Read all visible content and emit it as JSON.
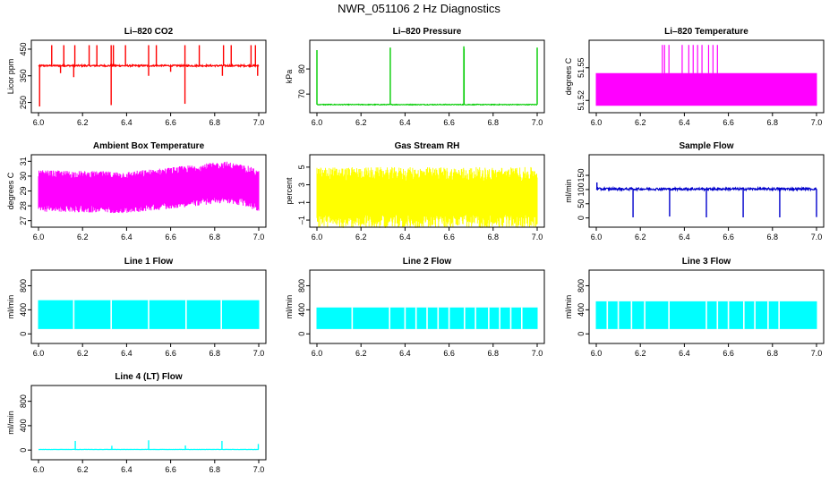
{
  "figure_title": "NWR_051106 2 Hz Diagnostics",
  "chart_data": [
    {
      "id": "li820-co2",
      "type": "line",
      "title": "Li–820 CO2",
      "ylabel": "Licor ppm",
      "color": "#ff0000",
      "xlim": [
        6.0,
        7.0
      ],
      "ylim": [
        225,
        470
      ],
      "xticks": [
        "6.0",
        "6.2",
        "6.4",
        "6.6",
        "6.8",
        "7.0"
      ],
      "yticks": [
        {
          "v": 250,
          "label": "250"
        },
        {
          "v": 350,
          "label": "350"
        },
        {
          "v": 450,
          "label": "450"
        }
      ],
      "gen": {
        "mode": "baseline",
        "base": 388,
        "noise": 3,
        "spikes": [
          {
            "x": 6.06,
            "y": 465
          },
          {
            "x": 6.115,
            "y": 465
          },
          {
            "x": 6.165,
            "y": 465
          },
          {
            "x": 6.23,
            "y": 465
          },
          {
            "x": 6.265,
            "y": 465
          },
          {
            "x": 6.33,
            "y": 465
          },
          {
            "x": 6.34,
            "y": 465
          },
          {
            "x": 6.395,
            "y": 465
          },
          {
            "x": 6.5,
            "y": 465
          },
          {
            "x": 6.535,
            "y": 465
          },
          {
            "x": 6.665,
            "y": 465
          },
          {
            "x": 6.73,
            "y": 465
          },
          {
            "x": 6.84,
            "y": 465
          },
          {
            "x": 6.875,
            "y": 465
          },
          {
            "x": 6.965,
            "y": 465
          },
          {
            "x": 6.985,
            "y": 465
          },
          {
            "x": 6.005,
            "y": 235
          },
          {
            "x": 6.33,
            "y": 240
          },
          {
            "x": 6.665,
            "y": 245
          },
          {
            "x": 6.16,
            "y": 345
          },
          {
            "x": 6.5,
            "y": 350
          },
          {
            "x": 6.835,
            "y": 350
          },
          {
            "x": 6.995,
            "y": 350
          },
          {
            "x": 6.1,
            "y": 360
          },
          {
            "x": 6.6,
            "y": 365
          }
        ]
      }
    },
    {
      "id": "li820-pressure",
      "type": "line",
      "title": "Li–820 Pressure",
      "ylabel": "kPa",
      "color": "#00cc00",
      "xlim": [
        6.0,
        7.0
      ],
      "ylim": [
        64,
        90
      ],
      "xticks": [
        "6.0",
        "6.2",
        "6.4",
        "6.6",
        "6.8",
        "7.0"
      ],
      "yticks": [
        {
          "v": 70,
          "label": "70"
        },
        {
          "v": 80,
          "label": "80"
        }
      ],
      "gen": {
        "mode": "baseline",
        "base": 65.8,
        "noise": 0.15,
        "spikes": [
          {
            "x": 6.0,
            "y": 87.5
          },
          {
            "x": 6.333,
            "y": 88.5
          },
          {
            "x": 6.667,
            "y": 89
          },
          {
            "x": 6.668,
            "y": 88
          },
          {
            "x": 7.0,
            "y": 88.5
          }
        ]
      }
    },
    {
      "id": "li820-temperature",
      "type": "band",
      "title": "Li–820 Temperature",
      "ylabel": "degrees C",
      "color": "#ff00ff",
      "xlim": [
        6.0,
        7.0
      ],
      "ylim": [
        51.512,
        51.572
      ],
      "xticks": [
        "6.0",
        "6.2",
        "6.4",
        "6.6",
        "6.8",
        "7.0"
      ],
      "yticks": [
        {
          "v": 51.52,
          "label": "51.52"
        },
        {
          "v": 51.55,
          "label": "51.55"
        }
      ],
      "gen": {
        "mode": "band",
        "lo": 51.515,
        "hi": 51.545,
        "noise": 0,
        "spikes": [
          {
            "x": 6.3,
            "y": 51.571
          },
          {
            "x": 6.31,
            "y": 51.571
          },
          {
            "x": 6.33,
            "y": 51.571
          },
          {
            "x": 6.39,
            "y": 51.571
          },
          {
            "x": 6.42,
            "y": 51.571
          },
          {
            "x": 6.44,
            "y": 51.571
          },
          {
            "x": 6.46,
            "y": 51.571
          },
          {
            "x": 6.48,
            "y": 51.571
          },
          {
            "x": 6.51,
            "y": 51.571
          },
          {
            "x": 6.53,
            "y": 51.571
          },
          {
            "x": 6.55,
            "y": 51.571
          }
        ]
      }
    },
    {
      "id": "ambient-box-temperature",
      "type": "band",
      "title": "Ambient Box Temperature",
      "ylabel": "degrees C",
      "color": "#ff00ff",
      "xlim": [
        6.0,
        7.0
      ],
      "ylim": [
        26.8,
        31.2
      ],
      "xticks": [
        "6.0",
        "6.2",
        "6.4",
        "6.6",
        "6.8",
        "7.0"
      ],
      "yticks": [
        {
          "v": 27,
          "label": "27"
        },
        {
          "v": 28,
          "label": "28"
        },
        {
          "v": 29,
          "label": "29"
        },
        {
          "v": 30,
          "label": "30"
        },
        {
          "v": 31,
          "label": "31"
        }
      ],
      "gen": {
        "mode": "band",
        "lo": 28.1,
        "hi": 29.9,
        "noise": 0.5,
        "drift": [
          [
            6.0,
            0
          ],
          [
            6.4,
            -0.1
          ],
          [
            6.6,
            0.2
          ],
          [
            6.85,
            0.6
          ],
          [
            6.95,
            0.3
          ],
          [
            7.0,
            0
          ]
        ]
      }
    },
    {
      "id": "gas-stream-rh",
      "type": "band",
      "title": "Gas Stream RH",
      "ylabel": "percent",
      "color": "#ffff00",
      "xlim": [
        6.0,
        7.0
      ],
      "ylim": [
        -1.4,
        6.0
      ],
      "xticks": [
        "6.0",
        "6.2",
        "6.4",
        "6.6",
        "6.8",
        "7.0"
      ],
      "yticks": [
        {
          "v": -1,
          "label": "–1"
        },
        {
          "v": 1,
          "label": "1"
        },
        {
          "v": 3,
          "label": "3"
        },
        {
          "v": 5,
          "label": "5"
        }
      ],
      "gen": {
        "mode": "band",
        "lo": -0.3,
        "hi": 3.4,
        "noise": 1.6
      }
    },
    {
      "id": "sample-flow",
      "type": "line",
      "title": "Sample Flow",
      "ylabel": "ml/min",
      "color": "#0000cc",
      "xlim": [
        6.0,
        7.0
      ],
      "ylim": [
        -20,
        210
      ],
      "xticks": [
        "6.0",
        "6.2",
        "6.4",
        "6.6",
        "6.8",
        "7.0"
      ],
      "yticks": [
        {
          "v": 0,
          "label": "0"
        },
        {
          "v": 50,
          "label": "50"
        },
        {
          "v": 100,
          "label": "100"
        },
        {
          "v": 150,
          "label": "150"
        }
      ],
      "gen": {
        "mode": "baseline",
        "base": 102,
        "noise": 4,
        "spikes": [
          {
            "x": 6.003,
            "y": 125
          },
          {
            "x": 6.167,
            "y": 2
          },
          {
            "x": 6.333,
            "y": 5
          },
          {
            "x": 6.5,
            "y": 2
          },
          {
            "x": 6.667,
            "y": 2
          },
          {
            "x": 6.833,
            "y": 2
          },
          {
            "x": 7.0,
            "y": 3
          }
        ]
      }
    },
    {
      "id": "line-1-flow",
      "type": "band",
      "title": "Line 1 Flow",
      "ylabel": "ml/min",
      "color": "#00ffff",
      "xlim": [
        6.0,
        7.0
      ],
      "ylim": [
        -100,
        1000
      ],
      "xticks": [
        "6.0",
        "6.2",
        "6.4",
        "6.6",
        "6.8",
        "7.0"
      ],
      "yticks": [
        {
          "v": 0,
          "label": "0"
        },
        {
          "v": 400,
          "label": "400"
        },
        {
          "v": 800,
          "label": "800"
        }
      ],
      "gen": {
        "mode": "band",
        "lo": 80,
        "hi": 560,
        "noise": 0,
        "gaps": [
          6.16,
          6.33,
          6.5,
          6.67,
          6.83
        ]
      }
    },
    {
      "id": "line-2-flow",
      "type": "band",
      "title": "Line 2 Flow",
      "ylabel": "ml/min",
      "color": "#00ffff",
      "xlim": [
        6.0,
        7.0
      ],
      "ylim": [
        -100,
        1000
      ],
      "xticks": [
        "6.0",
        "6.2",
        "6.4",
        "6.6",
        "6.8",
        "7.0"
      ],
      "yticks": [
        {
          "v": 0,
          "label": "0"
        },
        {
          "v": 400,
          "label": "400"
        },
        {
          "v": 800,
          "label": "800"
        }
      ],
      "gen": {
        "mode": "band",
        "lo": 80,
        "hi": 440,
        "noise": 0,
        "gaps": [
          6.16,
          6.33,
          6.4,
          6.45,
          6.5,
          6.55,
          6.6,
          6.67,
          6.72,
          6.78,
          6.83,
          6.88,
          6.93
        ]
      }
    },
    {
      "id": "line-3-flow",
      "type": "band",
      "title": "Line 3 Flow",
      "ylabel": "ml/min",
      "color": "#00ffff",
      "xlim": [
        6.0,
        7.0
      ],
      "ylim": [
        -100,
        1000
      ],
      "xticks": [
        "6.0",
        "6.2",
        "6.4",
        "6.6",
        "6.8",
        "7.0"
      ],
      "yticks": [
        {
          "v": 0,
          "label": "0"
        },
        {
          "v": 400,
          "label": "400"
        },
        {
          "v": 800,
          "label": "800"
        }
      ],
      "gen": {
        "mode": "band",
        "lo": 80,
        "hi": 540,
        "noise": 0,
        "gaps": [
          6.05,
          6.1,
          6.16,
          6.22,
          6.33,
          6.5,
          6.55,
          6.6,
          6.67,
          6.72,
          6.78,
          6.83
        ]
      }
    },
    {
      "id": "line-4-lt-flow",
      "type": "line",
      "title": "Line 4 (LT) Flow",
      "ylabel": "ml/min",
      "color": "#00ffff",
      "xlim": [
        6.0,
        7.0
      ],
      "ylim": [
        -100,
        1000
      ],
      "xticks": [
        "6.0",
        "6.2",
        "6.4",
        "6.6",
        "6.8",
        "7.0"
      ],
      "yticks": [
        {
          "v": 0,
          "label": "0"
        },
        {
          "v": 400,
          "label": "400"
        },
        {
          "v": 800,
          "label": "800"
        }
      ],
      "gen": {
        "mode": "baseline",
        "base": 10,
        "noise": 2,
        "spikes": [
          {
            "x": 6.167,
            "y": 150
          },
          {
            "x": 6.333,
            "y": 70
          },
          {
            "x": 6.5,
            "y": 160
          },
          {
            "x": 6.667,
            "y": 75
          },
          {
            "x": 6.833,
            "y": 150
          },
          {
            "x": 6.998,
            "y": 100
          }
        ]
      }
    }
  ]
}
